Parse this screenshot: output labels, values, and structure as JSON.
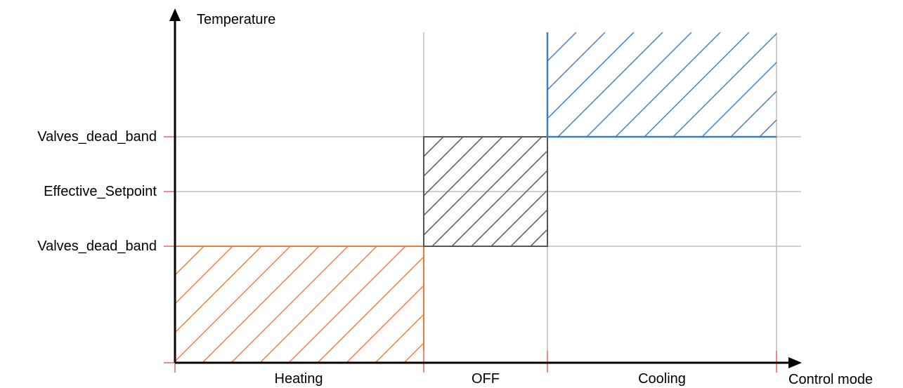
{
  "axes": {
    "y_label": "Temperature",
    "x_label": "Control mode"
  },
  "levels": [
    {
      "key": "upper",
      "label": "Valves_dead_band"
    },
    {
      "key": "setpoint",
      "label": "Effective_Setpoint"
    },
    {
      "key": "lower",
      "label": "Valves_dead_band"
    }
  ],
  "modes": [
    {
      "key": "heating",
      "label": "Heating",
      "color": "#f07a3a"
    },
    {
      "key": "off",
      "label": "OFF",
      "color": "#555555"
    },
    {
      "key": "cooling",
      "label": "Cooling",
      "color": "#3a7fc4"
    }
  ],
  "colors": {
    "axis": "#000000",
    "grid": "#bdbdbd",
    "tick": "#f08a8a",
    "heating": "#f07a3a",
    "off": "#555555",
    "cooling": "#3a7fc4"
  }
}
